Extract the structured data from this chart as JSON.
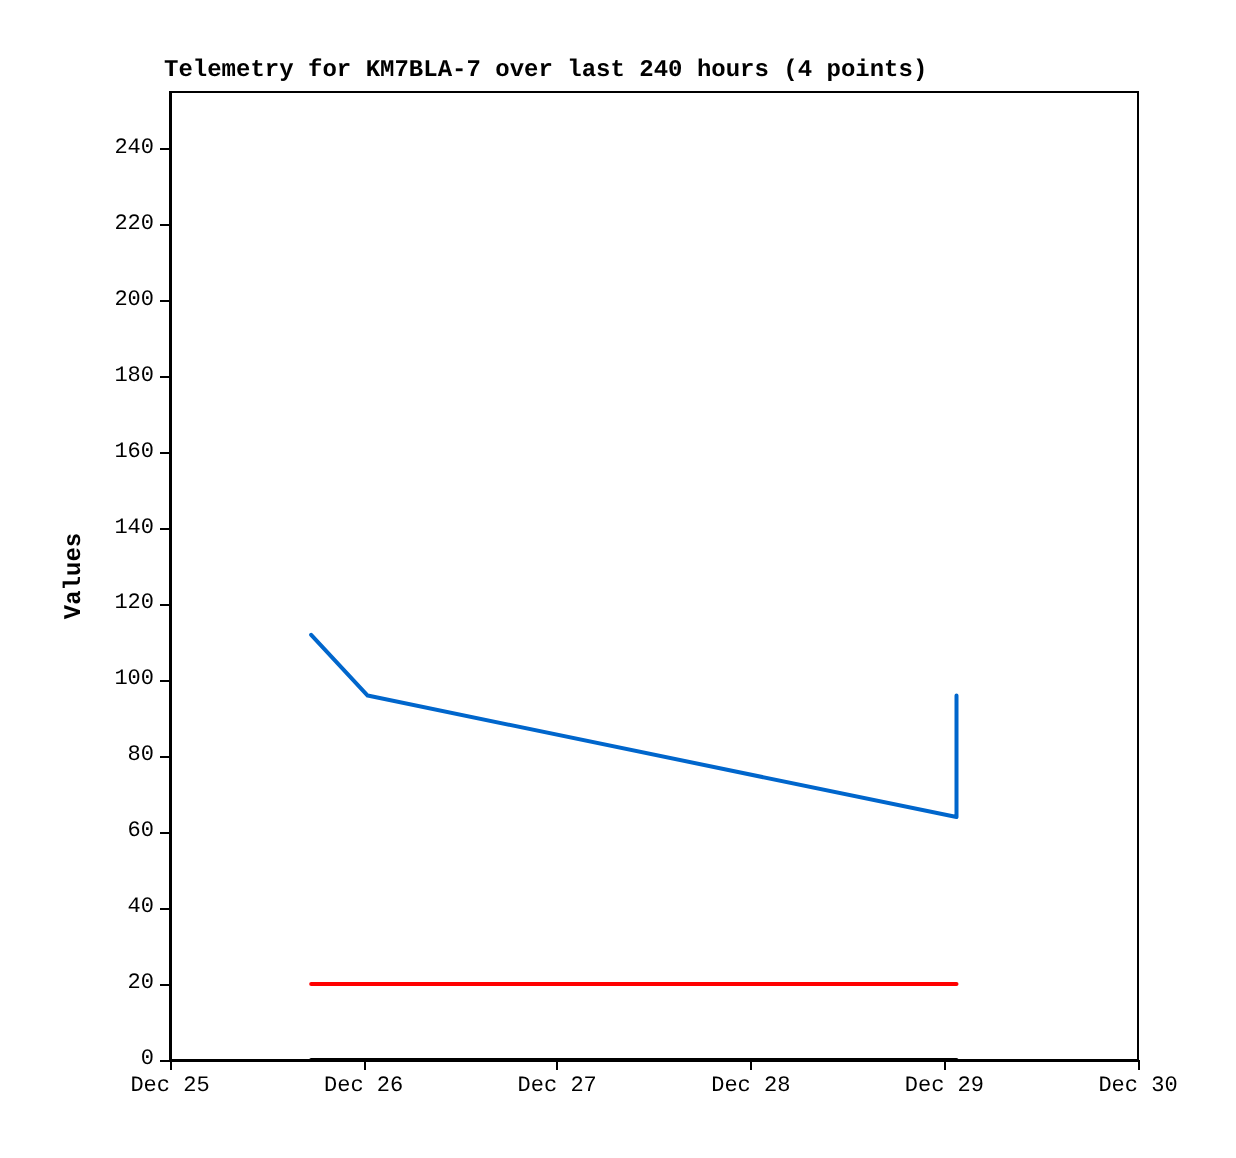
{
  "chart_data": {
    "type": "line",
    "title": "Telemetry for KM7BLA-7 over last 240 hours (4 points)",
    "ylabel": "Values",
    "series": [
      {
        "color": "#0066cc",
        "x": [
          "--12-25T17:30",
          "--12-26T00:30",
          "--12-29T01:30",
          "--12-29T01:30"
        ],
        "values": [
          112,
          96,
          64,
          96
        ]
      },
      {
        "color": "#ff0000",
        "x": [
          "--12-25T17:30",
          "--12-29T01:30"
        ],
        "values": [
          20,
          20
        ]
      },
      {
        "color": "#000000",
        "x": [
          "--12-25T17:30",
          "--12-29T01:30"
        ],
        "values": [
          0,
          0
        ]
      }
    ],
    "xlim": [
      "--12-25",
      "--12-30"
    ],
    "xticks": [
      {
        "value": "--12-25",
        "label": "Dec 25"
      },
      {
        "value": "--12-26",
        "label": "Dec 26"
      },
      {
        "value": "--12-27",
        "label": "Dec 27"
      },
      {
        "value": "--12-28",
        "label": "Dec 28"
      },
      {
        "value": "--12-29",
        "label": "Dec 29"
      },
      {
        "value": "--12-30",
        "label": "Dec 30"
      }
    ],
    "ylim": [
      0,
      255
    ],
    "yticks": [
      0,
      20,
      40,
      60,
      80,
      100,
      120,
      140,
      160,
      180,
      200,
      220,
      240
    ],
    "grid": false,
    "marker": "none",
    "line_style": "solid"
  }
}
